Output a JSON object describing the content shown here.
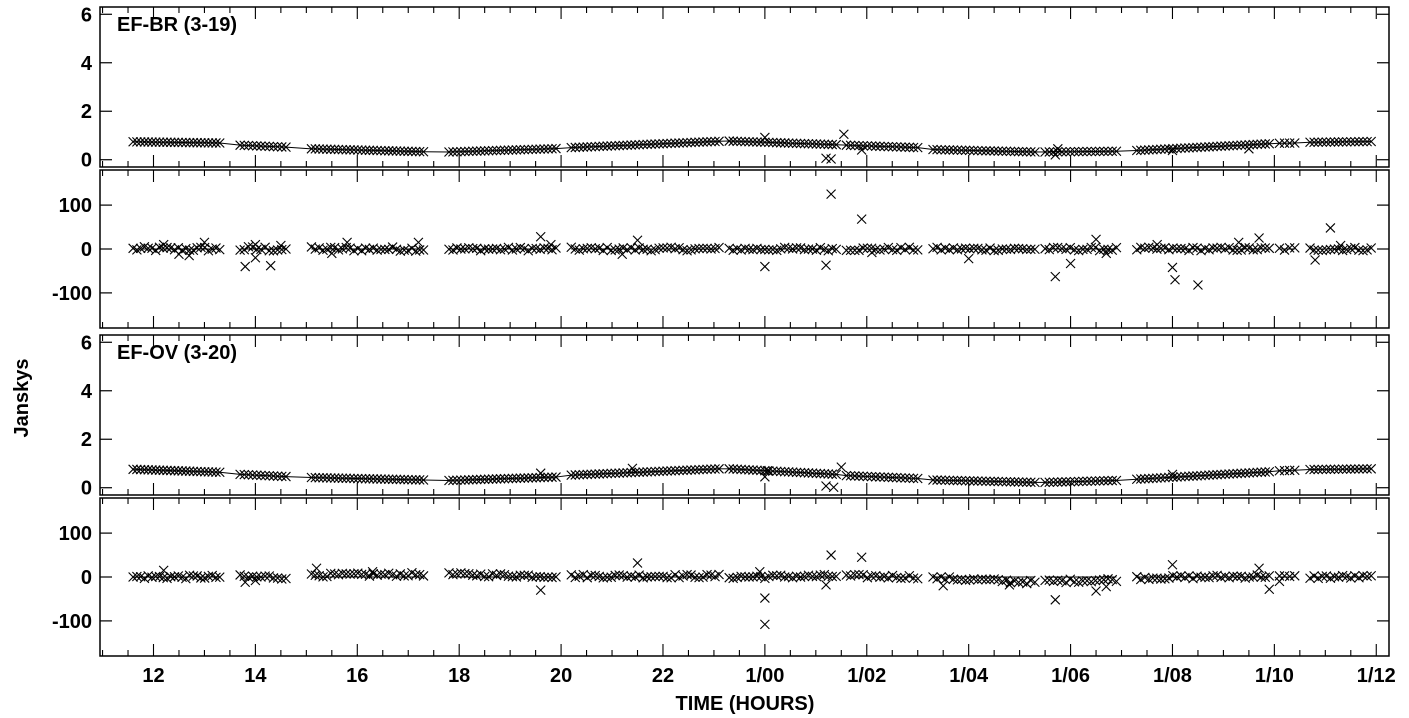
{
  "chart_data": {
    "type": "scatter",
    "xlabel": "TIME (HOURS)",
    "ylabel": "Janskys",
    "x_unit": "hours",
    "x_ticks": [
      {
        "value": 12,
        "label": "12"
      },
      {
        "value": 14,
        "label": "14"
      },
      {
        "value": 16,
        "label": "16"
      },
      {
        "value": 18,
        "label": "18"
      },
      {
        "value": 20,
        "label": "20"
      },
      {
        "value": 22,
        "label": "22"
      },
      {
        "value": 24,
        "label": "1/00"
      },
      {
        "value": 26,
        "label": "1/02"
      },
      {
        "value": 28,
        "label": "1/04"
      },
      {
        "value": 30,
        "label": "1/06"
      },
      {
        "value": 32,
        "label": "1/08"
      },
      {
        "value": 34,
        "label": "1/10"
      },
      {
        "value": 36,
        "label": "1/12"
      }
    ],
    "x_range": [
      10.95,
      36.25
    ],
    "panels": [
      {
        "title": "EF-BR (3-19)",
        "amplitude": {
          "ylim": [
            -0.3,
            6.3
          ],
          "y_ticks": [
            0,
            2,
            4,
            6
          ],
          "scans": [
            {
              "x": [
                11.6,
                13.3
              ],
              "y": [
                0.74,
                0.69
              ],
              "n": 24
            },
            {
              "x": [
                13.7,
                14.6
              ],
              "y": [
                0.6,
                0.52
              ],
              "n": 12
            },
            {
              "x": [
                15.1,
                17.3
              ],
              "y": [
                0.45,
                0.33
              ],
              "n": 30
            },
            {
              "x": [
                17.8,
                19.9
              ],
              "y": [
                0.32,
                0.46
              ],
              "n": 28
            },
            {
              "x": [
                20.2,
                23.1
              ],
              "y": [
                0.5,
                0.76
              ],
              "n": 38
            },
            {
              "x": [
                23.3,
                25.4
              ],
              "y": [
                0.77,
                0.62
              ],
              "n": 28
            },
            {
              "x": [
                25.6,
                27.0
              ],
              "y": [
                0.6,
                0.5
              ],
              "n": 18
            },
            {
              "x": [
                27.3,
                29.3
              ],
              "y": [
                0.42,
                0.32
              ],
              "n": 26
            },
            {
              "x": [
                29.5,
                30.9
              ],
              "y": [
                0.32,
                0.35
              ],
              "n": 18
            },
            {
              "x": [
                31.3,
                33.9
              ],
              "y": [
                0.38,
                0.66
              ],
              "n": 34
            },
            {
              "x": [
                34.1,
                34.4
              ],
              "y": [
                0.68,
                0.69
              ],
              "n": 4
            },
            {
              "x": [
                34.7,
                35.9
              ],
              "y": [
                0.72,
                0.75
              ],
              "n": 16
            }
          ],
          "outliers": [
            {
              "x": 24.0,
              "y": 0.92
            },
            {
              "x": 25.2,
              "y": 0.06
            },
            {
              "x": 25.3,
              "y": 0.03
            },
            {
              "x": 25.55,
              "y": 1.05
            },
            {
              "x": 25.9,
              "y": 0.4
            },
            {
              "x": 29.7,
              "y": 0.2
            },
            {
              "x": 29.75,
              "y": 0.45
            },
            {
              "x": 32.0,
              "y": 0.38
            },
            {
              "x": 33.5,
              "y": 0.45
            }
          ]
        },
        "phase": {
          "ylim": [
            -180,
            180
          ],
          "y_ticks": [
            -100,
            0,
            100
          ],
          "scans": [
            {
              "x": [
                11.6,
                13.3
              ],
              "y": [
                0,
                0
              ],
              "n": 24,
              "jitter": 5
            },
            {
              "x": [
                13.7,
                14.6
              ],
              "y": [
                0,
                0
              ],
              "n": 12,
              "jitter": 6
            },
            {
              "x": [
                15.1,
                17.3
              ],
              "y": [
                0,
                0
              ],
              "n": 30,
              "jitter": 5
            },
            {
              "x": [
                17.8,
                19.9
              ],
              "y": [
                0,
                0
              ],
              "n": 28,
              "jitter": 4
            },
            {
              "x": [
                20.2,
                23.1
              ],
              "y": [
                0,
                0
              ],
              "n": 38,
              "jitter": 4
            },
            {
              "x": [
                23.3,
                25.4
              ],
              "y": [
                0,
                0
              ],
              "n": 28,
              "jitter": 4
            },
            {
              "x": [
                25.6,
                27.0
              ],
              "y": [
                0,
                0
              ],
              "n": 18,
              "jitter": 4
            },
            {
              "x": [
                27.3,
                29.3
              ],
              "y": [
                0,
                0
              ],
              "n": 26,
              "jitter": 4
            },
            {
              "x": [
                29.5,
                30.9
              ],
              "y": [
                0,
                0
              ],
              "n": 18,
              "jitter": 4
            },
            {
              "x": [
                31.3,
                33.9
              ],
              "y": [
                0,
                0
              ],
              "n": 34,
              "jitter": 4
            },
            {
              "x": [
                34.1,
                34.4
              ],
              "y": [
                0,
                0
              ],
              "n": 4,
              "jitter": 4
            },
            {
              "x": [
                34.7,
                35.9
              ],
              "y": [
                0,
                0
              ],
              "n": 16,
              "jitter": 4
            }
          ],
          "outliers": [
            {
              "x": 12.2,
              "y": 10
            },
            {
              "x": 12.5,
              "y": -12
            },
            {
              "x": 12.7,
              "y": -15
            },
            {
              "x": 13.0,
              "y": 15
            },
            {
              "x": 13.8,
              "y": -40
            },
            {
              "x": 14.0,
              "y": -20
            },
            {
              "x": 14.0,
              "y": 10
            },
            {
              "x": 14.3,
              "y": -38
            },
            {
              "x": 14.5,
              "y": 8
            },
            {
              "x": 15.5,
              "y": -10
            },
            {
              "x": 15.8,
              "y": 15
            },
            {
              "x": 17.2,
              "y": 15
            },
            {
              "x": 19.6,
              "y": 28
            },
            {
              "x": 19.8,
              "y": 10
            },
            {
              "x": 21.5,
              "y": 20
            },
            {
              "x": 21.2,
              "y": -12
            },
            {
              "x": 24.0,
              "y": -40
            },
            {
              "x": 25.2,
              "y": -37
            },
            {
              "x": 25.3,
              "y": 125
            },
            {
              "x": 25.9,
              "y": 68
            },
            {
              "x": 26.1,
              "y": -8
            },
            {
              "x": 28.0,
              "y": -22
            },
            {
              "x": 29.7,
              "y": -63
            },
            {
              "x": 30.0,
              "y": -33
            },
            {
              "x": 30.5,
              "y": 22
            },
            {
              "x": 30.7,
              "y": -10
            },
            {
              "x": 31.7,
              "y": 10
            },
            {
              "x": 32.0,
              "y": -42
            },
            {
              "x": 32.05,
              "y": -70
            },
            {
              "x": 32.5,
              "y": -82
            },
            {
              "x": 33.3,
              "y": 15
            },
            {
              "x": 33.7,
              "y": 25
            },
            {
              "x": 34.8,
              "y": -25
            },
            {
              "x": 35.1,
              "y": 48
            },
            {
              "x": 35.3,
              "y": 8
            }
          ]
        }
      },
      {
        "title": "EF-OV (3-20)",
        "amplitude": {
          "ylim": [
            -0.3,
            6.3
          ],
          "y_ticks": [
            0,
            2,
            4,
            6
          ],
          "scans": [
            {
              "x": [
                11.6,
                13.3
              ],
              "y": [
                0.76,
                0.64
              ],
              "n": 24
            },
            {
              "x": [
                13.7,
                14.6
              ],
              "y": [
                0.55,
                0.46
              ],
              "n": 12
            },
            {
              "x": [
                15.1,
                17.3
              ],
              "y": [
                0.42,
                0.32
              ],
              "n": 30
            },
            {
              "x": [
                17.8,
                19.9
              ],
              "y": [
                0.3,
                0.44
              ],
              "n": 28
            },
            {
              "x": [
                20.2,
                23.1
              ],
              "y": [
                0.52,
                0.78
              ],
              "n": 38
            },
            {
              "x": [
                23.3,
                25.4
              ],
              "y": [
                0.78,
                0.55
              ],
              "n": 28
            },
            {
              "x": [
                25.6,
                27.0
              ],
              "y": [
                0.5,
                0.38
              ],
              "n": 18
            },
            {
              "x": [
                27.3,
                29.3
              ],
              "y": [
                0.32,
                0.22
              ],
              "n": 26
            },
            {
              "x": [
                29.5,
                30.9
              ],
              "y": [
                0.22,
                0.3
              ],
              "n": 18
            },
            {
              "x": [
                31.3,
                33.9
              ],
              "y": [
                0.35,
                0.66
              ],
              "n": 34
            },
            {
              "x": [
                34.1,
                34.4
              ],
              "y": [
                0.7,
                0.72
              ],
              "n": 4
            },
            {
              "x": [
                34.7,
                35.9
              ],
              "y": [
                0.75,
                0.78
              ],
              "n": 16
            }
          ],
          "outliers": [
            {
              "x": 19.6,
              "y": 0.6
            },
            {
              "x": 21.4,
              "y": 0.8
            },
            {
              "x": 24.0,
              "y": 0.45
            },
            {
              "x": 24.05,
              "y": 0.7
            },
            {
              "x": 25.2,
              "y": 0.07
            },
            {
              "x": 25.35,
              "y": 0.02
            },
            {
              "x": 25.5,
              "y": 0.85
            },
            {
              "x": 32.0,
              "y": 0.55
            }
          ]
        },
        "phase": {
          "ylim": [
            -180,
            180
          ],
          "y_ticks": [
            -100,
            0,
            100
          ],
          "scans": [
            {
              "x": [
                11.6,
                13.3
              ],
              "y": [
                0,
                0
              ],
              "n": 24,
              "jitter": 4
            },
            {
              "x": [
                13.7,
                14.6
              ],
              "y": [
                0,
                0
              ],
              "n": 12,
              "jitter": 5
            },
            {
              "x": [
                15.1,
                17.3
              ],
              "y": [
                4,
                6
              ],
              "n": 30,
              "jitter": 4
            },
            {
              "x": [
                17.8,
                19.9
              ],
              "y": [
                6,
                2
              ],
              "n": 28,
              "jitter": 4
            },
            {
              "x": [
                20.2,
                23.1
              ],
              "y": [
                2,
                2
              ],
              "n": 38,
              "jitter": 4
            },
            {
              "x": [
                23.3,
                25.4
              ],
              "y": [
                0,
                2
              ],
              "n": 28,
              "jitter": 4
            },
            {
              "x": [
                25.6,
                27.0
              ],
              "y": [
                2,
                0
              ],
              "n": 18,
              "jitter": 4
            },
            {
              "x": [
                27.3,
                29.3
              ],
              "y": [
                -2,
                -12
              ],
              "n": 26,
              "jitter": 4
            },
            {
              "x": [
                29.5,
                30.9
              ],
              "y": [
                -10,
                -6
              ],
              "n": 18,
              "jitter": 4
            },
            {
              "x": [
                31.3,
                33.9
              ],
              "y": [
                -2,
                2
              ],
              "n": 34,
              "jitter": 4
            },
            {
              "x": [
                34.1,
                34.4
              ],
              "y": [
                0,
                0
              ],
              "n": 4,
              "jitter": 4
            },
            {
              "x": [
                34.7,
                35.9
              ],
              "y": [
                0,
                0
              ],
              "n": 16,
              "jitter": 4
            }
          ],
          "outliers": [
            {
              "x": 12.2,
              "y": 15
            },
            {
              "x": 13.8,
              "y": -12
            },
            {
              "x": 14.0,
              "y": -8
            },
            {
              "x": 15.2,
              "y": 20
            },
            {
              "x": 16.3,
              "y": 12
            },
            {
              "x": 19.6,
              "y": -30
            },
            {
              "x": 21.5,
              "y": 32
            },
            {
              "x": 23.9,
              "y": 12
            },
            {
              "x": 24.0,
              "y": -48
            },
            {
              "x": 24.0,
              "y": -108
            },
            {
              "x": 25.2,
              "y": -18
            },
            {
              "x": 25.3,
              "y": 50
            },
            {
              "x": 25.9,
              "y": 45
            },
            {
              "x": 27.5,
              "y": -20
            },
            {
              "x": 28.8,
              "y": -18
            },
            {
              "x": 29.7,
              "y": -52
            },
            {
              "x": 30.5,
              "y": -32
            },
            {
              "x": 30.7,
              "y": -22
            },
            {
              "x": 32.0,
              "y": 28
            },
            {
              "x": 33.7,
              "y": 20
            },
            {
              "x": 33.9,
              "y": -28
            },
            {
              "x": 34.1,
              "y": -10
            }
          ]
        }
      }
    ]
  }
}
